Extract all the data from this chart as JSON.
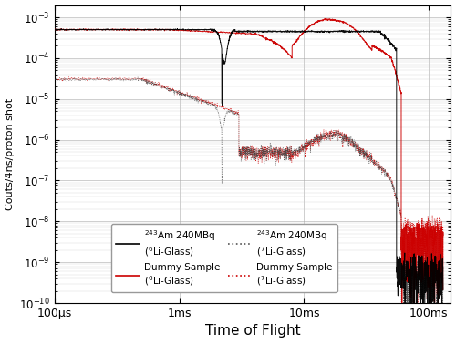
{
  "xlabel": "Time of Flight",
  "ylabel": "Couts/4ns/proton shot",
  "xmin": 0.0001,
  "xmax": 0.15,
  "ymin": 1e-10,
  "ymax": 0.002,
  "xtick_positions": [
    0.0001,
    0.001,
    0.01,
    0.1
  ],
  "xtick_labels": [
    "100μs",
    "1ms",
    "10ms",
    "100ms"
  ],
  "line_color_6Li_Am": "#000000",
  "line_color_6Li_dummy": "#cc0000",
  "line_color_7Li_Am": "#444444",
  "line_color_7Li_dummy": "#cc0000",
  "legend_fontsize": 7.5
}
